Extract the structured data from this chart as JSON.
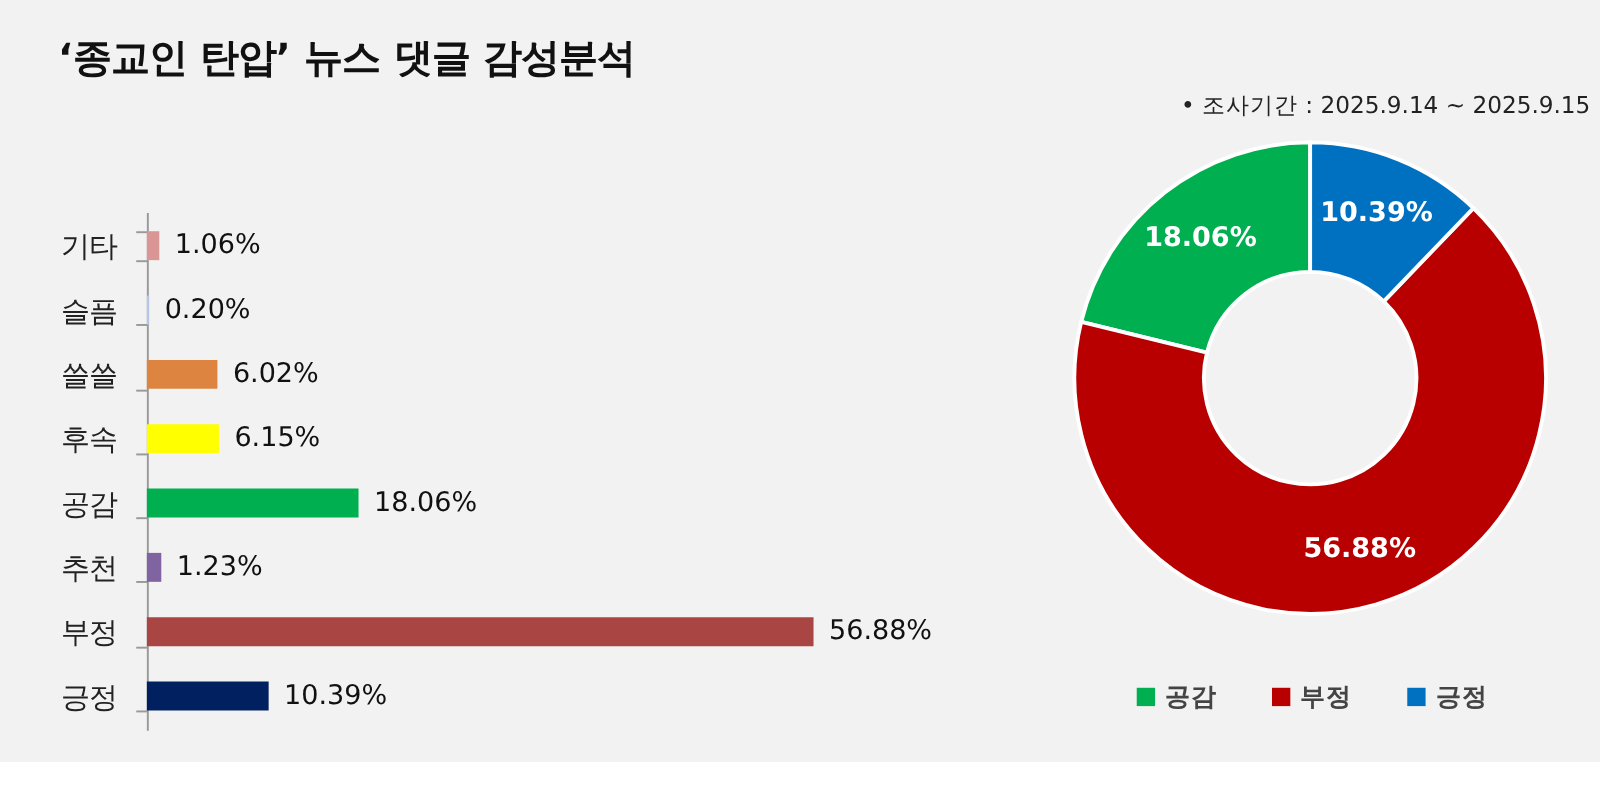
{
  "chart_data": [
    {
      "type": "bar",
      "orientation": "horizontal",
      "title": "‘종교인 탄압’ 뉴스 댓글 감성분석",
      "categories": [
        "기타",
        "슬픔",
        "쓸쓸",
        "후속",
        "공감",
        "추천",
        "부정",
        "긍정"
      ],
      "values": [
        1.06,
        0.2,
        6.02,
        6.15,
        18.06,
        1.23,
        56.88,
        10.39
      ],
      "colors": [
        "#d99694",
        "#b4c7e7",
        "#dd8540",
        "#ffff00",
        "#00b050",
        "#8064a2",
        "#a94644",
        "#002060"
      ],
      "value_labels": [
        "1.06%",
        "0.20%",
        "6.02%",
        "6.15%",
        "18.06%",
        "1.23%",
        "56.88%",
        "10.39%"
      ],
      "legend": false
    },
    {
      "type": "donut",
      "annotations": [
        "• 조사기간 : 2025.9.14 ~ 2025.9.15"
      ],
      "categories": [
        "공감",
        "부정",
        "긍정"
      ],
      "values": [
        18.06,
        56.88,
        10.39
      ],
      "colors": [
        "#00b050",
        "#b80000",
        "#0070c0"
      ],
      "value_labels": [
        "18.06%",
        "56.88%",
        "10.39%"
      ],
      "legend": "bottom"
    }
  ]
}
